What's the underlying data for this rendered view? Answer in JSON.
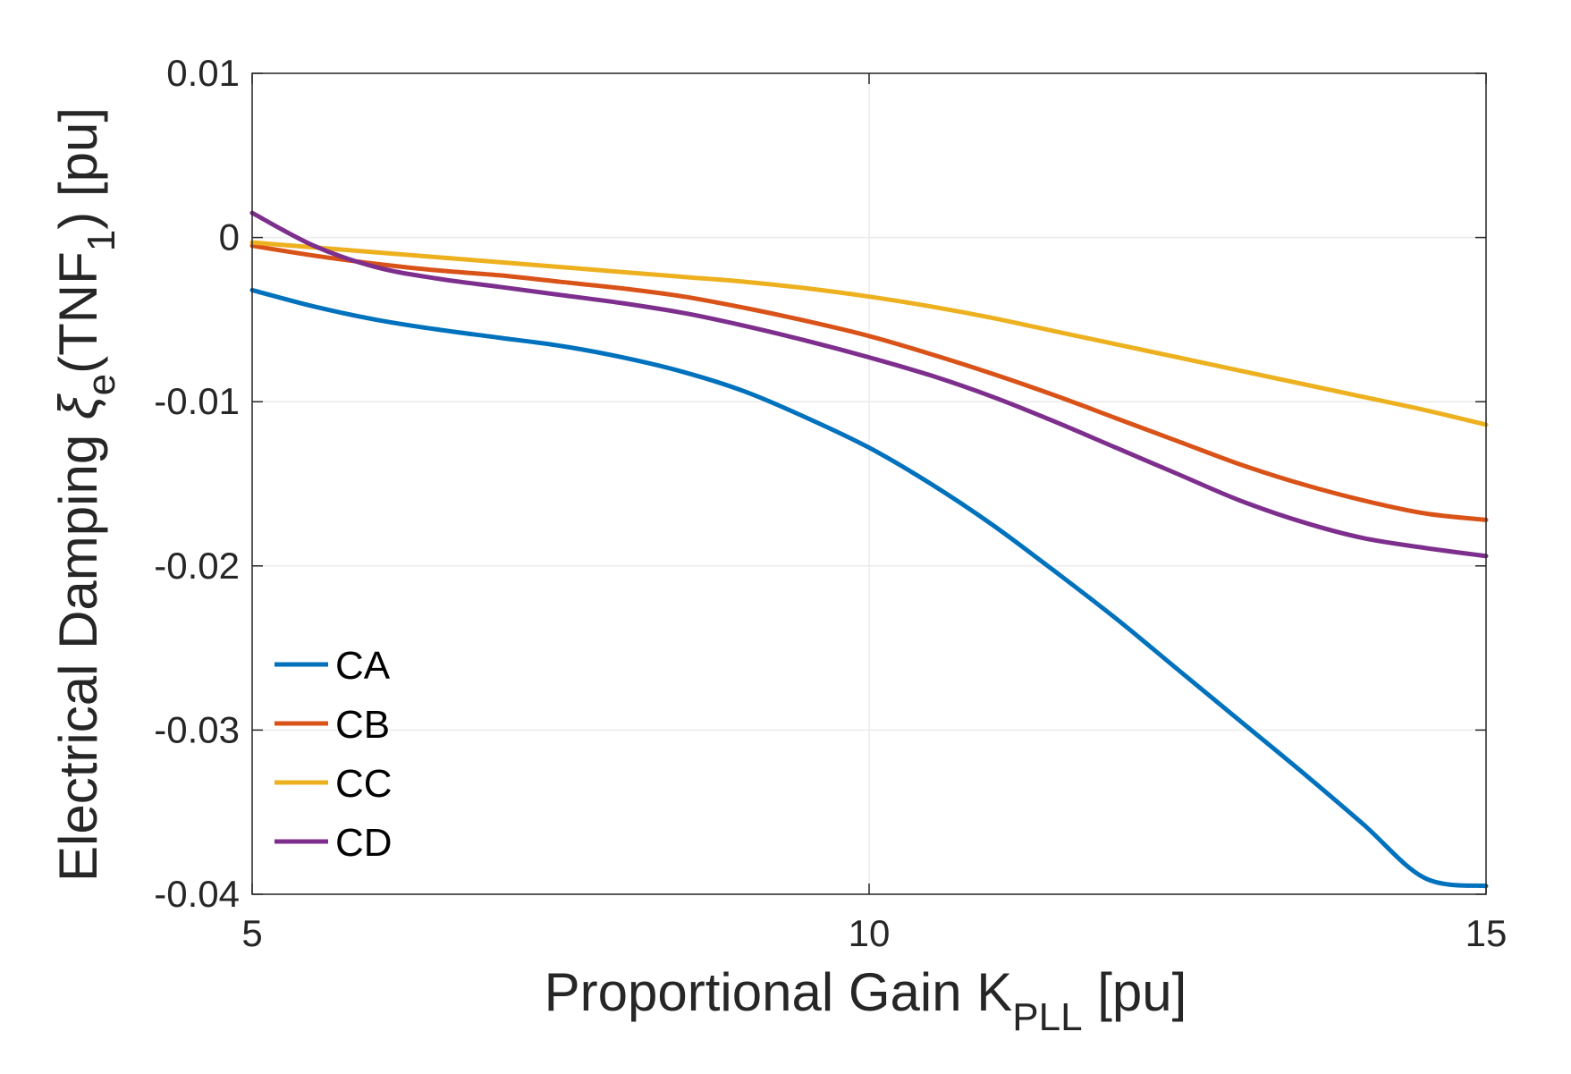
{
  "chart_data": {
    "type": "line",
    "title": "",
    "xlabel": {
      "main": "Proportional Gain K",
      "sub": "PLL",
      "unit": " [pu]"
    },
    "ylabel": {
      "pre": "Electrical Damping ",
      "xi": "ξ",
      "sub_e": "e",
      "mid": "(TNF",
      "sub_1": "1",
      "post": ") [pu]"
    },
    "xlim": [
      5,
      15
    ],
    "ylim": [
      -0.04,
      0.01
    ],
    "xticks": [
      5,
      10,
      15
    ],
    "xtick_labels": [
      "5",
      "10",
      "15"
    ],
    "yticks": [
      0.01,
      0,
      -0.01,
      -0.02,
      -0.03,
      -0.04
    ],
    "ytick_labels": [
      "0.01",
      "0",
      "-0.01",
      "-0.02",
      "-0.03",
      "-0.04"
    ],
    "grid": true,
    "legend_position": "bottom-left",
    "x": [
      5,
      5.5,
      6,
      6.5,
      7,
      7.5,
      8,
      8.5,
      9,
      9.5,
      10,
      10.5,
      11,
      11.5,
      12,
      12.5,
      13,
      13.5,
      14,
      14.5,
      15
    ],
    "series": [
      {
        "name": "CA",
        "color": "#0072BD",
        "values": [
          -0.0032,
          -0.0042,
          -0.005,
          -0.0056,
          -0.0061,
          -0.0066,
          -0.0073,
          -0.0082,
          -0.0094,
          -0.011,
          -0.0128,
          -0.015,
          -0.0175,
          -0.0203,
          -0.0232,
          -0.0263,
          -0.0294,
          -0.0325,
          -0.0357,
          -0.039,
          -0.0395
        ]
      },
      {
        "name": "CB",
        "color": "#D95319",
        "values": [
          -0.0005,
          -0.0011,
          -0.0016,
          -0.002,
          -0.0023,
          -0.0027,
          -0.0031,
          -0.0036,
          -0.0043,
          -0.0051,
          -0.006,
          -0.0071,
          -0.0083,
          -0.0096,
          -0.011,
          -0.0124,
          -0.0138,
          -0.015,
          -0.016,
          -0.0168,
          -0.0172
        ]
      },
      {
        "name": "CC",
        "color": "#EDB120",
        "values": [
          -0.0003,
          -0.0006,
          -0.0009,
          -0.0012,
          -0.0015,
          -0.0018,
          -0.0021,
          -0.0024,
          -0.0027,
          -0.0031,
          -0.0036,
          -0.0042,
          -0.0049,
          -0.0057,
          -0.0065,
          -0.0073,
          -0.0081,
          -0.0089,
          -0.0097,
          -0.0105,
          -0.0114
        ]
      },
      {
        "name": "CD",
        "color": "#7E2F8E",
        "values": [
          0.0015,
          -0.0005,
          -0.0018,
          -0.0025,
          -0.003,
          -0.0035,
          -0.004,
          -0.0046,
          -0.0054,
          -0.0063,
          -0.0073,
          -0.0084,
          -0.0097,
          -0.0112,
          -0.0128,
          -0.0144,
          -0.016,
          -0.0173,
          -0.0183,
          -0.0189,
          -0.0194
        ]
      }
    ]
  }
}
